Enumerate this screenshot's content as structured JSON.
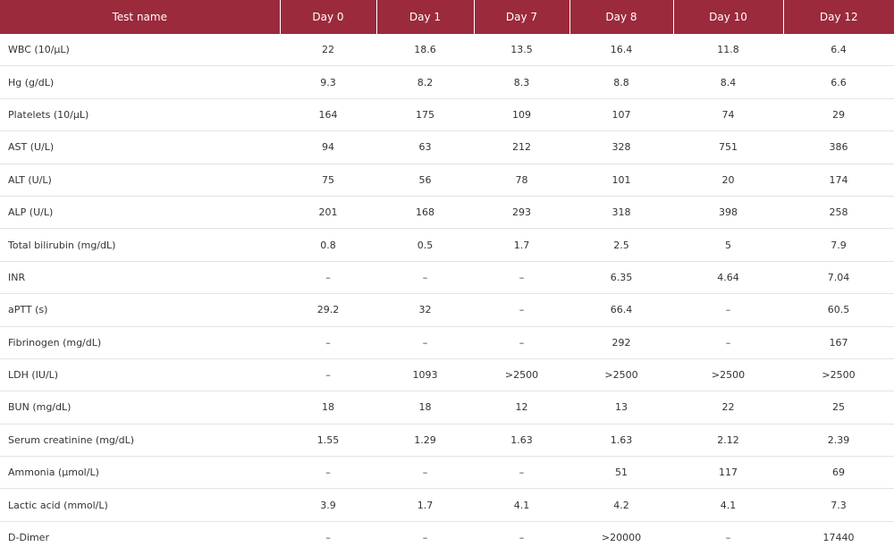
{
  "header": {
    "test_name": "Test name",
    "days": [
      "Day 0",
      "Day 1",
      "Day 7",
      "Day 8",
      "Day 10",
      "Day 12"
    ]
  },
  "rows": [
    {
      "name": "WBC (10/µL)",
      "values": [
        "22",
        "18.6",
        "13.5",
        "16.4",
        "11.8",
        "6.4"
      ]
    },
    {
      "name": "Hg (g/dL)",
      "values": [
        "9.3",
        "8.2",
        "8.3",
        "8.8",
        "8.4",
        "6.6"
      ]
    },
    {
      "name": "Platelets (10/µL)",
      "values": [
        "164",
        "175",
        "109",
        "107",
        "74",
        "29"
      ]
    },
    {
      "name": "AST (U/L)",
      "values": [
        "94",
        "63",
        "212",
        "328",
        "751",
        "386"
      ]
    },
    {
      "name": "ALT (U/L)",
      "values": [
        "75",
        "56",
        "78",
        "101",
        "20",
        "174"
      ]
    },
    {
      "name": "ALP (U/L)",
      "values": [
        "201",
        "168",
        "293",
        "318",
        "398",
        "258"
      ]
    },
    {
      "name": "Total bilirubin (mg/dL)",
      "values": [
        "0.8",
        "0.5",
        "1.7",
        "2.5",
        "5",
        "7.9"
      ]
    },
    {
      "name": "INR",
      "values": [
        "–",
        "–",
        "–",
        "6.35",
        "4.64",
        "7.04"
      ]
    },
    {
      "name": "aPTT (s)",
      "values": [
        "29.2",
        "32",
        "–",
        "66.4",
        "–",
        "60.5"
      ]
    },
    {
      "name": "Fibrinogen (mg/dL)",
      "values": [
        "–",
        "–",
        "–",
        "292",
        "–",
        "167"
      ]
    },
    {
      "name": "LDH (IU/L)",
      "values": [
        "–",
        "1093",
        ">2500",
        ">2500",
        ">2500",
        ">2500"
      ]
    },
    {
      "name": "BUN (mg/dL)",
      "values": [
        "18",
        "18",
        "12",
        "13",
        "22",
        "25"
      ]
    },
    {
      "name": "Serum creatinine (mg/dL)",
      "values": [
        "1.55",
        "1.29",
        "1.63",
        "1.63",
        "2.12",
        "2.39"
      ]
    },
    {
      "name": "Ammonia (µmol/L)",
      "values": [
        "–",
        "–",
        "–",
        "51",
        "117",
        "69"
      ]
    },
    {
      "name": "Lactic acid (mmol/L)",
      "values": [
        "3.9",
        "1.7",
        "4.1",
        "4.2",
        "4.1",
        "7.3"
      ]
    },
    {
      "name": "D-Dimer",
      "values": [
        "–",
        "–",
        "–",
        ">20000",
        "–",
        "17440"
      ]
    }
  ]
}
